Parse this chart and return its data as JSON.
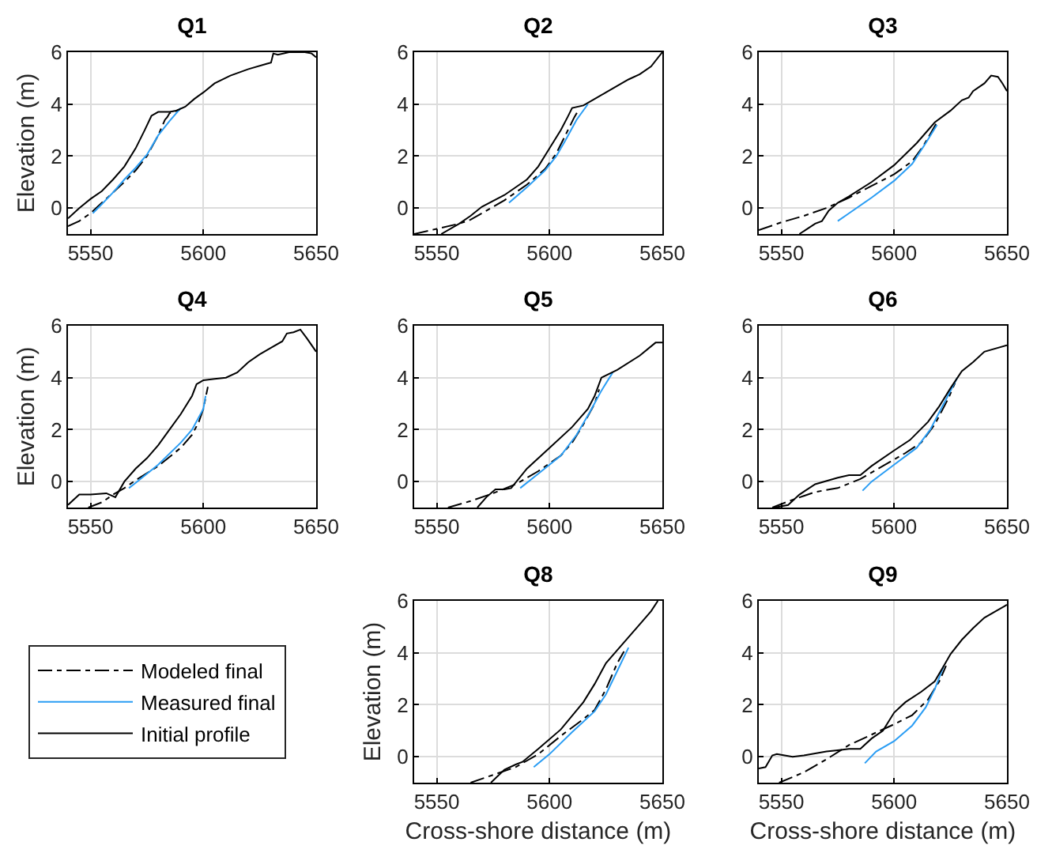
{
  "chart_data": [
    {
      "type": "line",
      "title": "Q1",
      "ylabel": "Elevation (m)",
      "xlim": [
        5540,
        5650
      ],
      "xticks": [
        5550,
        5600,
        5650
      ],
      "ylim": [
        -1,
        6
      ],
      "yticks": [
        0,
        2,
        4,
        6
      ],
      "grid": true,
      "series": [
        {
          "color": "#000000",
          "line_style": "dashdot",
          "x": [
            5540,
            5545,
            5550,
            5555,
            5560,
            5565,
            5570,
            5575,
            5580,
            5583,
            5584,
            5585,
            5590
          ],
          "values": [
            -0.7,
            -0.5,
            -0.2,
            0.2,
            0.6,
            1.0,
            1.45,
            2.0,
            2.8,
            3.4,
            3.5,
            3.65,
            3.8
          ]
        },
        {
          "color": "#2a9df4",
          "line_style": "solid",
          "x": [
            5551,
            5555,
            5560,
            5565,
            5570,
            5575,
            5580,
            5585,
            5590
          ],
          "values": [
            -0.2,
            0.15,
            0.6,
            1.1,
            1.55,
            2.05,
            2.8,
            3.35,
            3.85
          ]
        },
        {
          "color": "#000000",
          "line_style": "solid",
          "x": [
            5540,
            5545,
            5550,
            5555,
            5560,
            5565,
            5570,
            5574,
            5577,
            5580,
            5585,
            5588,
            5592,
            5596,
            5600,
            5605,
            5612,
            5620,
            5628,
            5630,
            5631,
            5633,
            5638,
            5645,
            5648,
            5650
          ],
          "values": [
            -0.4,
            0,
            0.35,
            0.65,
            1.1,
            1.6,
            2.3,
            3.0,
            3.55,
            3.7,
            3.7,
            3.75,
            3.9,
            4.2,
            4.45,
            4.8,
            5.1,
            5.35,
            5.55,
            5.6,
            5.95,
            5.9,
            6,
            6,
            5.95,
            5.8
          ]
        }
      ]
    },
    {
      "type": "line",
      "title": "Q2",
      "xlim": [
        5540,
        5650
      ],
      "xticks": [
        5550,
        5600,
        5650
      ],
      "ylim": [
        -1,
        6
      ],
      "yticks": [
        0,
        2,
        4,
        6
      ],
      "grid": true,
      "series": [
        {
          "color": "#000000",
          "line_style": "dashdot",
          "x": [
            5540,
            5550,
            5560,
            5565,
            5570,
            5580,
            5590,
            5598,
            5603,
            5607,
            5611,
            5613
          ],
          "values": [
            -1.0,
            -0.8,
            -0.6,
            -0.45,
            -0.2,
            0.3,
            0.9,
            1.5,
            2.1,
            2.8,
            3.5,
            3.8
          ]
        },
        {
          "color": "#2a9df4",
          "line_style": "solid",
          "x": [
            5582,
            5590,
            5598,
            5603,
            5607,
            5612,
            5617
          ],
          "values": [
            0.2,
            0.8,
            1.45,
            2.0,
            2.6,
            3.4,
            4.0
          ]
        },
        {
          "color": "#000000",
          "line_style": "solid",
          "x": [
            5552,
            5560,
            5565,
            5570,
            5580,
            5590,
            5595,
            5600,
            5605,
            5608,
            5610,
            5615,
            5620,
            5625,
            5630,
            5635,
            5640,
            5645,
            5650
          ],
          "values": [
            -1,
            -0.6,
            -0.3,
            0.05,
            0.5,
            1.1,
            1.6,
            2.3,
            3.0,
            3.5,
            3.85,
            3.95,
            4.2,
            4.45,
            4.7,
            4.95,
            5.15,
            5.45,
            6
          ]
        }
      ]
    },
    {
      "type": "line",
      "title": "Q3",
      "xlim": [
        5540,
        5650
      ],
      "xticks": [
        5550,
        5600,
        5650
      ],
      "ylim": [
        -1,
        6
      ],
      "yticks": [
        0,
        2,
        4,
        6
      ],
      "grid": true,
      "series": [
        {
          "color": "#000000",
          "line_style": "dashdot",
          "x": [
            5540,
            5550,
            5560,
            5570,
            5580,
            5590,
            5600,
            5608,
            5613,
            5617,
            5619
          ],
          "values": [
            -0.85,
            -0.55,
            -0.3,
            0.0,
            0.4,
            0.85,
            1.3,
            1.8,
            2.4,
            3.0,
            3.3
          ]
        },
        {
          "color": "#2a9df4",
          "line_style": "solid",
          "x": [
            5575,
            5580,
            5590,
            5600,
            5608,
            5614,
            5619
          ],
          "values": [
            -0.5,
            -0.2,
            0.4,
            1.05,
            1.7,
            2.5,
            3.2
          ]
        },
        {
          "color": "#000000",
          "line_style": "solid",
          "x": [
            5558,
            5565,
            5568,
            5571,
            5575,
            5580,
            5590,
            5600,
            5610,
            5618,
            5625,
            5630,
            5633,
            5635,
            5640,
            5643,
            5646,
            5648,
            5650
          ],
          "values": [
            -1,
            -0.6,
            -0.5,
            -0.1,
            0.2,
            0.45,
            1.0,
            1.65,
            2.5,
            3.3,
            3.75,
            4.15,
            4.25,
            4.5,
            4.8,
            5.1,
            5.05,
            4.8,
            4.5
          ]
        }
      ]
    },
    {
      "type": "line",
      "title": "Q4",
      "ylabel": "Elevation (m)",
      "xlim": [
        5540,
        5650
      ],
      "xticks": [
        5550,
        5600,
        5650
      ],
      "ylim": [
        -1,
        6
      ],
      "yticks": [
        0,
        2,
        4,
        6
      ],
      "grid": true,
      "series": [
        {
          "color": "#000000",
          "line_style": "dashdot",
          "x": [
            5549,
            5555,
            5560,
            5565,
            5570,
            5580,
            5590,
            5595,
            5598,
            5600,
            5602
          ],
          "values": [
            -1,
            -0.8,
            -0.5,
            -0.25,
            0.05,
            0.6,
            1.3,
            1.8,
            2.3,
            2.8,
            3.65
          ]
        },
        {
          "color": "#2a9df4",
          "line_style": "solid",
          "x": [
            5567,
            5570,
            5580,
            5590,
            5595,
            5600,
            5601
          ],
          "values": [
            -0.25,
            -0.05,
            0.65,
            1.5,
            2.0,
            2.8,
            3.3
          ]
        },
        {
          "color": "#000000",
          "line_style": "solid",
          "x": [
            5540,
            5545,
            5550,
            5557,
            5561,
            5565,
            5570,
            5575,
            5580,
            5585,
            5590,
            5595,
            5597,
            5600,
            5605,
            5610,
            5615,
            5620,
            5625,
            5630,
            5635,
            5637,
            5640,
            5643,
            5646,
            5650
          ],
          "values": [
            -0.9,
            -0.5,
            -0.5,
            -0.45,
            -0.6,
            0.0,
            0.5,
            0.9,
            1.4,
            2.0,
            2.6,
            3.3,
            3.75,
            3.9,
            3.95,
            4.0,
            4.2,
            4.6,
            4.9,
            5.15,
            5.4,
            5.7,
            5.75,
            5.85,
            5.5,
            5.0
          ]
        }
      ]
    },
    {
      "type": "line",
      "title": "Q5",
      "xlim": [
        5540,
        5650
      ],
      "xticks": [
        5550,
        5600,
        5650
      ],
      "ylim": [
        -1,
        6
      ],
      "yticks": [
        0,
        2,
        4,
        6
      ],
      "grid": true,
      "series": [
        {
          "color": "#000000",
          "line_style": "dashdot",
          "x": [
            5555,
            5565,
            5575,
            5585,
            5595,
            5605,
            5610,
            5615,
            5620,
            5622
          ],
          "values": [
            -1,
            -0.75,
            -0.45,
            -0.1,
            0.4,
            1.0,
            1.5,
            2.2,
            3.0,
            3.55
          ]
        },
        {
          "color": "#2a9df4",
          "line_style": "solid",
          "x": [
            5587,
            5595,
            5605,
            5612,
            5618,
            5623,
            5628
          ],
          "values": [
            -0.25,
            0.3,
            1.0,
            1.8,
            2.7,
            3.5,
            4.2
          ]
        },
        {
          "color": "#000000",
          "line_style": "solid",
          "x": [
            5568,
            5572,
            5576,
            5580,
            5583,
            5590,
            5600,
            5610,
            5617,
            5620,
            5623,
            5630,
            5640,
            5647,
            5650
          ],
          "values": [
            -1,
            -0.6,
            -0.3,
            -0.3,
            -0.25,
            0.5,
            1.3,
            2.1,
            2.8,
            3.3,
            4.0,
            4.3,
            4.85,
            5.35,
            5.35
          ]
        }
      ]
    },
    {
      "type": "line",
      "title": "Q6",
      "xlim": [
        5540,
        5650
      ],
      "xticks": [
        5550,
        5600,
        5650
      ],
      "ylim": [
        -1,
        6
      ],
      "yticks": [
        0,
        2,
        4,
        6
      ],
      "grid": true,
      "series": [
        {
          "color": "#000000",
          "line_style": "dashdot",
          "x": [
            5546,
            5555,
            5565,
            5575,
            5585,
            5595,
            5605,
            5612,
            5618,
            5624,
            5627
          ],
          "values": [
            -1,
            -0.7,
            -0.4,
            -0.25,
            0.1,
            0.6,
            1.1,
            1.5,
            2.2,
            3.2,
            3.8
          ]
        },
        {
          "color": "#2a9df4",
          "line_style": "solid",
          "x": [
            5586,
            5590,
            5600,
            5610,
            5616,
            5622,
            5628
          ],
          "values": [
            -0.35,
            0.0,
            0.65,
            1.3,
            2.0,
            3.0,
            4.0
          ]
        },
        {
          "color": "#000000",
          "line_style": "solid",
          "x": [
            5547,
            5553,
            5558,
            5565,
            5575,
            5580,
            5585,
            5590,
            5600,
            5607,
            5615,
            5620,
            5625,
            5630,
            5635,
            5640,
            5650
          ],
          "values": [
            -1,
            -0.9,
            -0.5,
            -0.1,
            0.15,
            0.25,
            0.25,
            0.6,
            1.2,
            1.6,
            2.3,
            2.9,
            3.6,
            4.25,
            4.6,
            5.0,
            5.25
          ]
        }
      ]
    },
    {
      "type": "line",
      "title": "Q8",
      "xlabel": "Cross-shore distance (m)",
      "ylabel": "Elevation (m)",
      "xlim": [
        5540,
        5650
      ],
      "xticks": [
        5550,
        5600,
        5650
      ],
      "ylim": [
        -1,
        6
      ],
      "yticks": [
        0,
        2,
        4,
        6
      ],
      "grid": true,
      "legend": "left",
      "series": [
        {
          "name": "Modeled final",
          "color": "#000000",
          "line_style": "dashdot",
          "x": [
            5565,
            5575,
            5585,
            5595,
            5605,
            5615,
            5620,
            5625,
            5630,
            5633
          ],
          "values": [
            -1,
            -0.7,
            -0.4,
            0.1,
            0.8,
            1.45,
            1.8,
            2.6,
            3.6,
            4.05
          ]
        },
        {
          "name": "Measured final",
          "color": "#2a9df4",
          "line_style": "solid",
          "x": [
            5593,
            5600,
            5610,
            5620,
            5625,
            5630,
            5635
          ],
          "values": [
            -0.4,
            0.1,
            0.95,
            1.75,
            2.4,
            3.3,
            4.2
          ]
        },
        {
          "name": "Initial profile",
          "color": "#000000",
          "line_style": "solid",
          "x": [
            5574,
            5580,
            5585,
            5588,
            5595,
            5605,
            5615,
            5620,
            5625,
            5630,
            5640,
            5645,
            5648
          ],
          "values": [
            -1,
            -0.5,
            -0.3,
            -0.2,
            0.3,
            1.05,
            2.1,
            2.8,
            3.6,
            4.1,
            5.1,
            5.6,
            6
          ]
        }
      ]
    },
    {
      "type": "line",
      "title": "Q9",
      "xlabel": "Cross-shore distance (m)",
      "xlim": [
        5540,
        5650
      ],
      "xticks": [
        5550,
        5600,
        5650
      ],
      "ylim": [
        -1,
        6
      ],
      "yticks": [
        0,
        2,
        4,
        6
      ],
      "grid": true,
      "series": [
        {
          "color": "#000000",
          "line_style": "dashdot",
          "x": [
            5549,
            5560,
            5570,
            5580,
            5590,
            5600,
            5608,
            5615,
            5620,
            5623
          ],
          "values": [
            -1,
            -0.6,
            -0.1,
            0.45,
            0.85,
            1.25,
            1.6,
            2.2,
            2.9,
            3.5
          ]
        },
        {
          "color": "#2a9df4",
          "line_style": "solid",
          "x": [
            5587,
            5592,
            5600,
            5608,
            5614,
            5618,
            5622
          ],
          "values": [
            -0.25,
            0.2,
            0.6,
            1.2,
            1.9,
            2.6,
            3.5
          ]
        },
        {
          "color": "#000000",
          "line_style": "solid",
          "x": [
            5540,
            5543,
            5546,
            5548,
            5555,
            5560,
            5570,
            5575,
            5580,
            5585,
            5590,
            5595,
            5600,
            5605,
            5612,
            5618,
            5622,
            5625,
            5630,
            5635,
            5640,
            5645,
            5650
          ],
          "values": [
            -0.45,
            -0.4,
            0.05,
            0.1,
            0.0,
            0.05,
            0.2,
            0.25,
            0.3,
            0.3,
            0.7,
            1.0,
            1.7,
            2.1,
            2.5,
            2.9,
            3.5,
            3.95,
            4.5,
            4.95,
            5.35,
            5.6,
            5.85
          ]
        }
      ]
    }
  ]
}
